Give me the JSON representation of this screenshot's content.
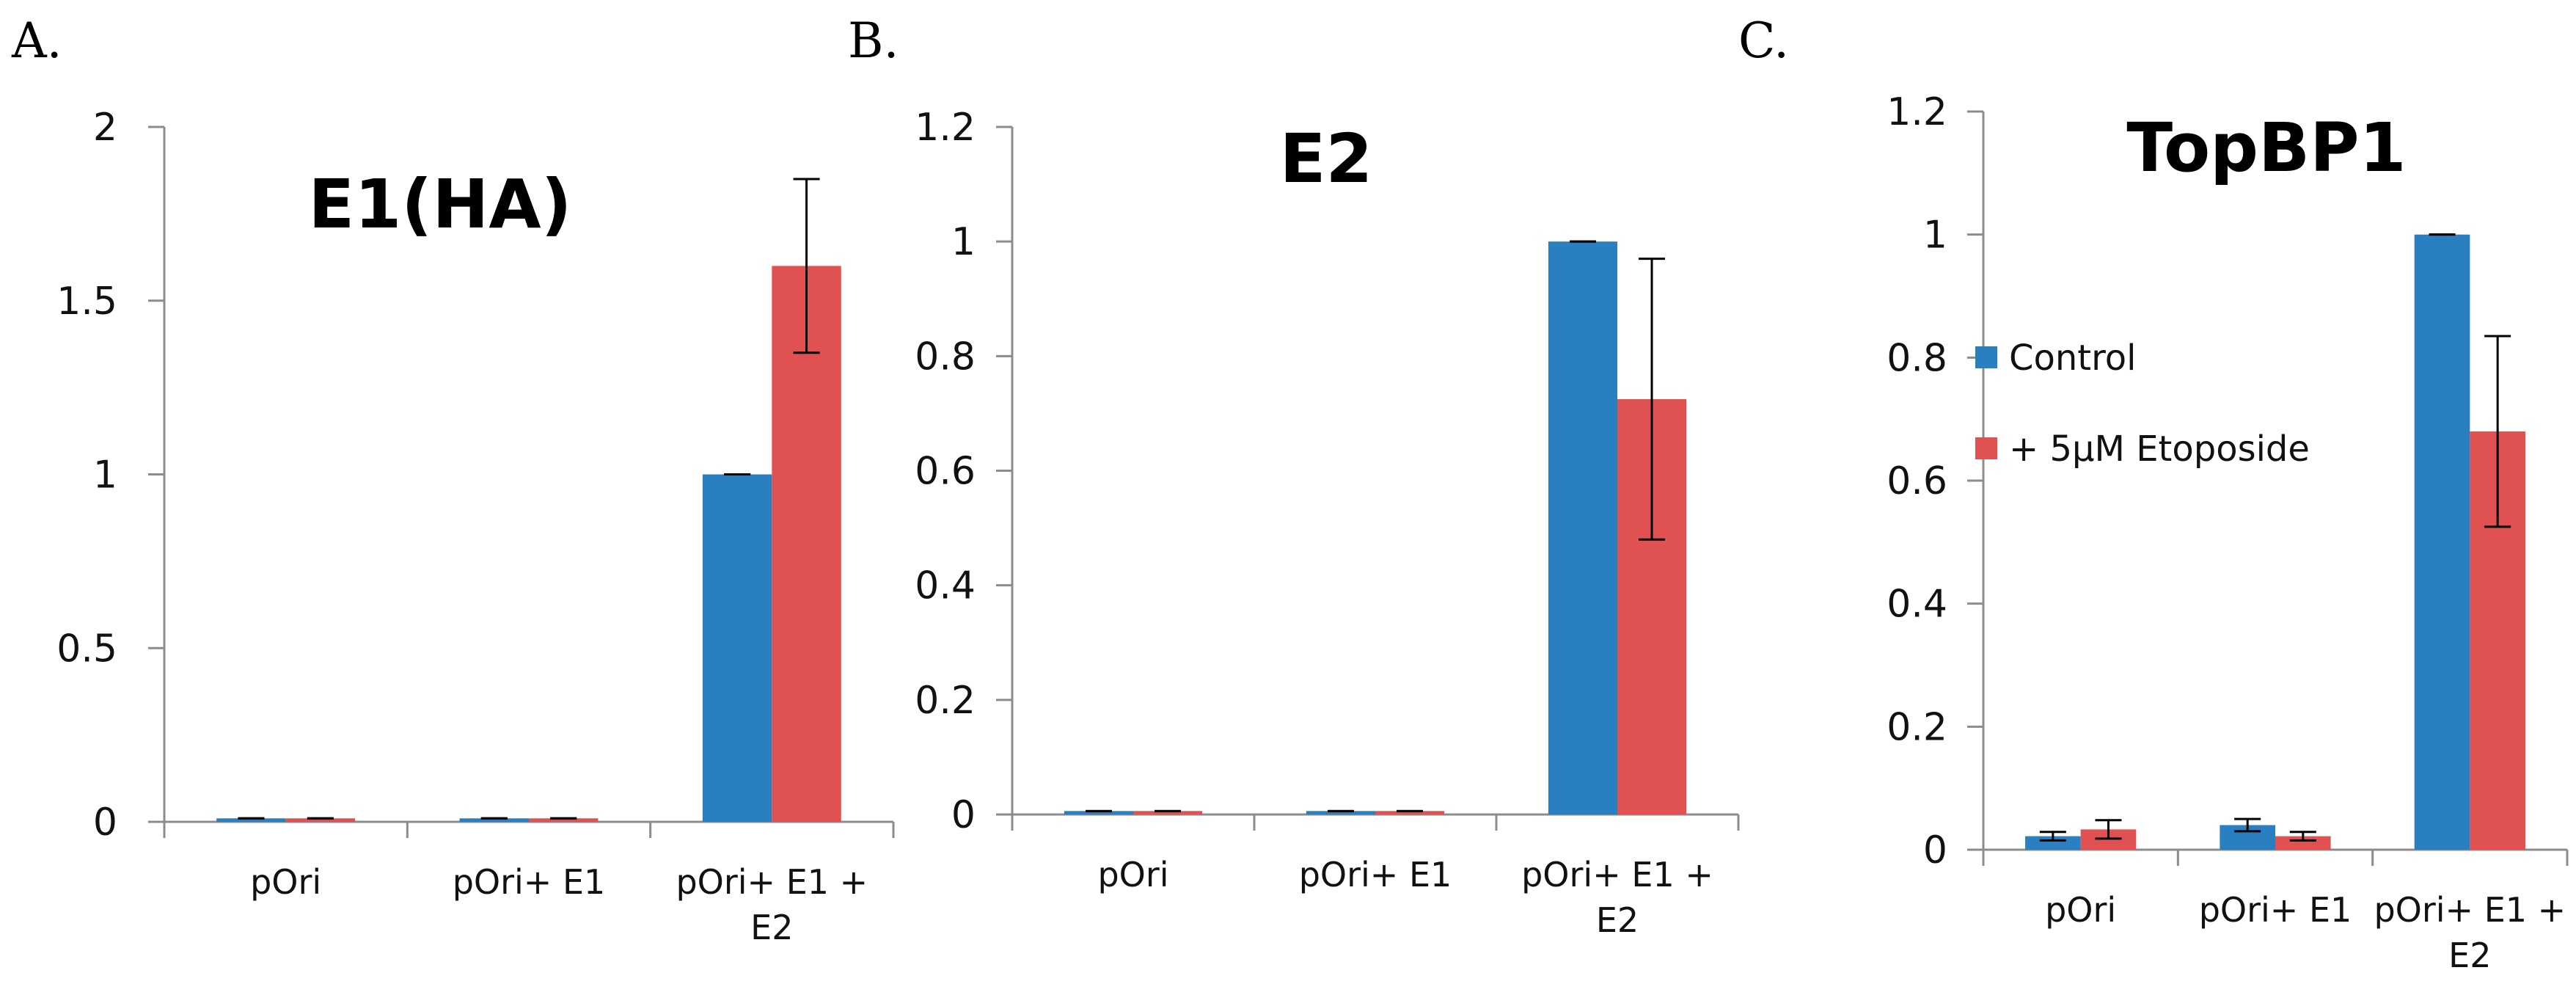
{
  "colors": {
    "control": "#2a7fc1",
    "etoposide": "#e05252"
  },
  "legend": {
    "items": [
      "Control",
      "+ 5µM Etoposide"
    ]
  },
  "chart_data": [
    {
      "type": "bar",
      "panel": "A.",
      "title": "E1(HA)",
      "categories": [
        [
          "pOri"
        ],
        [
          "pOri+ E1"
        ],
        [
          "pOri+ E1 +",
          "E2"
        ]
      ],
      "yticks": [
        "0",
        "0.5",
        "1",
        "1.5",
        "2"
      ],
      "ylim": [
        0,
        2
      ],
      "series": [
        {
          "name": "Control",
          "values": [
            0.01,
            0.01,
            1.0
          ],
          "errors": [
            0,
            0,
            0
          ]
        },
        {
          "name": "+ 5µM Etoposide",
          "values": [
            0.01,
            0.01,
            1.6
          ],
          "errors": [
            0,
            0,
            0.25
          ]
        }
      ]
    },
    {
      "type": "bar",
      "panel": "B.",
      "title": "E2",
      "categories": [
        [
          "pOri"
        ],
        [
          "pOri+ E1"
        ],
        [
          "pOri+ E1 +",
          "E2"
        ]
      ],
      "yticks": [
        "0",
        "0.2",
        "0.4",
        "0.6",
        "0.8",
        "1",
        "1.2"
      ],
      "ylim": [
        0,
        1.2
      ],
      "series": [
        {
          "name": "Control",
          "values": [
            0.006,
            0.006,
            1.0
          ],
          "errors": [
            0,
            0,
            0
          ]
        },
        {
          "name": "+ 5µM Etoposide",
          "values": [
            0.006,
            0.006,
            0.725
          ],
          "errors": [
            0,
            0,
            0.245
          ]
        }
      ]
    },
    {
      "type": "bar",
      "panel": "C.",
      "title": "TopBP1",
      "categories": [
        [
          "pOri"
        ],
        [
          "pOri+ E1"
        ],
        [
          "pOri+ E1 +",
          "E2"
        ]
      ],
      "yticks": [
        "0",
        "0.2",
        "0.4",
        "0.6",
        "0.8",
        "1",
        "1.2"
      ],
      "ylim": [
        0,
        1.2
      ],
      "series": [
        {
          "name": "Control",
          "values": [
            0.022,
            0.04,
            1.0
          ],
          "errors": [
            0.007,
            0.01,
            0
          ]
        },
        {
          "name": "+ 5µM Etoposide",
          "values": [
            0.033,
            0.022,
            0.68
          ],
          "errors": [
            0.015,
            0.007,
            0.155
          ]
        }
      ]
    }
  ]
}
